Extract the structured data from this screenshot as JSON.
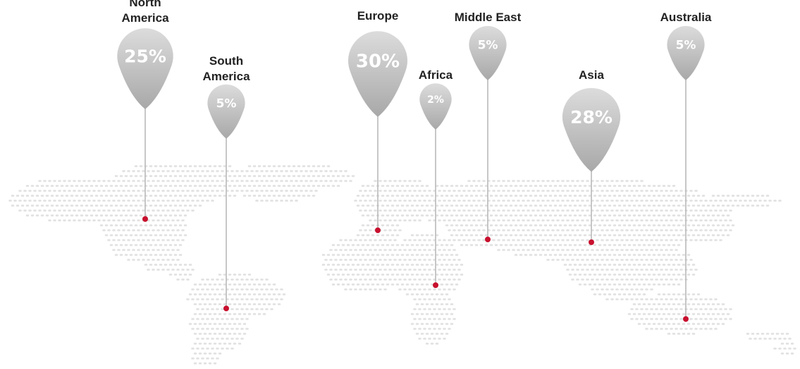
{
  "chart_data": {
    "type": "map-pins",
    "series": [
      {
        "region": "North America",
        "label_lines": [
          "North",
          "America"
        ],
        "value": 25,
        "value_label": "25%"
      },
      {
        "region": "South America",
        "label_lines": [
          "South",
          "America"
        ],
        "value": 5,
        "value_label": "5%"
      },
      {
        "region": "Europe",
        "label_lines": [
          "Europe"
        ],
        "value": 30,
        "value_label": "30%"
      },
      {
        "region": "Africa",
        "label_lines": [
          "Africa"
        ],
        "value": 2,
        "value_label": "2%"
      },
      {
        "region": "Middle East",
        "label_lines": [
          "Middle East"
        ],
        "value": 5,
        "value_label": "5%"
      },
      {
        "region": "Asia",
        "label_lines": [
          "Asia"
        ],
        "value": 28,
        "value_label": "28%"
      },
      {
        "region": "Australia",
        "label_lines": [
          "Australia"
        ],
        "value": 5,
        "value_label": "5%"
      }
    ],
    "colors": {
      "pin_top": "#dcdcdc",
      "pin_bottom": "#a8a8a8",
      "anchor": "#c8102e",
      "map_dots": "#e1e1e1"
    }
  }
}
